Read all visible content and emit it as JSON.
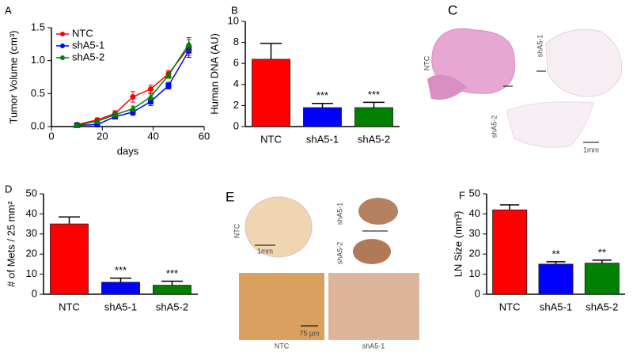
{
  "chart_data": [
    {
      "type": "line",
      "panel_label": "A",
      "x_label": "days",
      "y_label": "Tumor Volume (cm³)",
      "x": [
        10,
        18,
        25,
        32,
        39,
        46,
        54
      ],
      "series": [
        {
          "name": "NTC",
          "color": "#ff0000",
          "marker": "circle",
          "values": [
            0.03,
            0.1,
            0.2,
            0.45,
            0.57,
            0.8,
            1.2
          ],
          "errors": [
            0.02,
            0.03,
            0.04,
            0.08,
            0.06,
            0.05,
            0.12
          ]
        },
        {
          "name": "shA5-1",
          "color": "#0000ff",
          "marker": "square",
          "values": [
            0.02,
            0.03,
            0.15,
            0.22,
            0.38,
            0.62,
            1.15
          ],
          "errors": [
            0.01,
            0.02,
            0.03,
            0.05,
            0.06,
            0.05,
            0.1
          ]
        },
        {
          "name": "shA5-2",
          "color": "#008000",
          "marker": "triangle",
          "values": [
            0.02,
            0.08,
            0.18,
            0.27,
            0.45,
            0.78,
            1.25
          ],
          "errors": [
            0.01,
            0.02,
            0.03,
            0.04,
            0.05,
            0.05,
            0.1
          ]
        }
      ],
      "xlim": [
        0,
        60
      ],
      "xticks": [
        0,
        20,
        40,
        60
      ],
      "ylim": [
        0,
        1.5
      ],
      "yticks": [
        {
          "value": 0,
          "label": "0.0"
        },
        0.5,
        {
          "value": 1,
          "label": "1.0"
        },
        1.5
      ],
      "legend": "upper-left"
    },
    {
      "type": "bar",
      "panel_label": "B",
      "y_label": "Human DNA (AU)",
      "categories": [
        "NTC",
        "shA5-1",
        "shA5-2"
      ],
      "values": [
        6.4,
        1.8,
        1.8
      ],
      "errors": [
        1.5,
        0.4,
        0.5
      ],
      "colors": [
        "#ff0000",
        "#0000ff",
        "#008000"
      ],
      "annotations": [
        null,
        "***",
        "***"
      ],
      "ylim": [
        0,
        10
      ],
      "yticks": [
        0,
        2,
        4,
        6,
        8,
        10
      ]
    },
    {
      "type": "bar",
      "panel_label": "D",
      "y_label": "# of Mets / 25 mm²",
      "categories": [
        "NTC",
        "shA5-1",
        "shA5-2"
      ],
      "values": [
        35,
        6,
        4.5
      ],
      "errors": [
        3.5,
        2,
        2
      ],
      "colors": [
        "#ff0000",
        "#0000ff",
        "#008000"
      ],
      "annotations": [
        null,
        "***",
        "***"
      ],
      "ylim": [
        0,
        50
      ],
      "yticks": [
        0,
        10,
        20,
        30,
        40,
        50
      ]
    },
    {
      "type": "bar",
      "panel_label": "F",
      "y_label": "LN Size (mm³)",
      "categories": [
        "NTC",
        "shA5-1",
        "shA5-2"
      ],
      "values": [
        42,
        15,
        15.5
      ],
      "errors": [
        2.5,
        1.2,
        1.5
      ],
      "colors": [
        "#ff0000",
        "#0000ff",
        "#008000"
      ],
      "annotations": [
        null,
        "**",
        "**"
      ],
      "ylim": [
        0,
        50
      ],
      "yticks": [
        0,
        10,
        20,
        30,
        40,
        50
      ]
    }
  ],
  "images": [
    {
      "panel_label": "C",
      "labels": [
        "NTC",
        "shA5-1",
        "shA5-2"
      ],
      "scale": "1mm"
    },
    {
      "panel_label": "E",
      "labels": [
        "NTC",
        "shA5-1",
        "shA5-2"
      ],
      "scale": "1mm",
      "inset_scale": "75 µm",
      "captions": [
        "NTC",
        "shA5-1"
      ]
    }
  ]
}
